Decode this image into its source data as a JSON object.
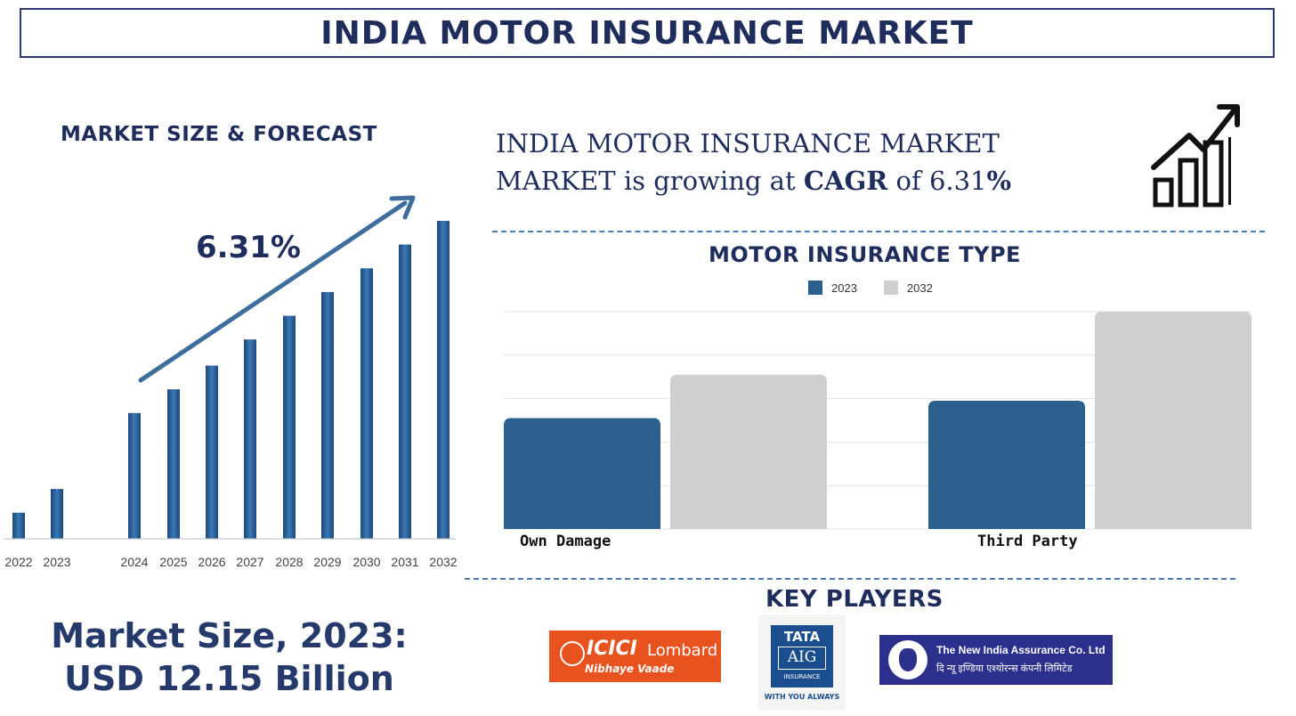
{
  "header": {
    "title": "INDIA MOTOR INSURANCE MARKET"
  },
  "left_panel": {
    "heading": "MARKET SIZE & FORECAST",
    "market_size_line1": "Market Size, 2023:",
    "market_size_line2": "USD 12.15 Billion"
  },
  "cagr_statement": {
    "part1": "INDIA MOTOR INSURANCE MARKET MARKET is growing at ",
    "emphasis": "CAGR",
    "part2": " of 6.31",
    "percent": "%"
  },
  "type_section": {
    "heading": "MOTOR INSURANCE TYPE"
  },
  "key_players": {
    "heading": "KEY PLAYERS",
    "icici": {
      "brand": "ICICI",
      "suffix": "Lombard",
      "tagline": "Nibhaye Vaade"
    },
    "tata": {
      "line1": "TATA",
      "line2": "AIG",
      "line3": "INSURANCE",
      "tagline": "WITH YOU ALWAYS"
    },
    "nia": {
      "line1": "The New India Assurance Co. Ltd",
      "line2": "दि न्यू इण्डिया एश्योरन्स कंपनी लिमिटेड"
    }
  },
  "colors": {
    "primary": "#2b5f8e",
    "secondary": "#cfcfcf",
    "text": "#1f2d5c",
    "accent_line": "#3d6e9e"
  },
  "chart_data": [
    {
      "type": "bar",
      "title": "MARKET SIZE & FORECAST",
      "categories": [
        "2022",
        "2023",
        "2024",
        "2025",
        "2026",
        "2027",
        "2028",
        "2029",
        "2030",
        "2031",
        "2032"
      ],
      "values": [
        5.5,
        10.5,
        26.5,
        31.5,
        36.5,
        42,
        47,
        52,
        57,
        62,
        67
      ],
      "annotation": "6.31%",
      "ylim": [
        0,
        70
      ],
      "xlabel": "",
      "ylabel": ""
    },
    {
      "type": "bar",
      "title": "MOTOR INSURANCE TYPE",
      "categories": [
        "Own Damage",
        "Third Party"
      ],
      "series": [
        {
          "name": "2023",
          "values": [
            25.5,
            29.5
          ]
        },
        {
          "name": "2032",
          "values": [
            35.5,
            50
          ]
        }
      ],
      "ylim": [
        0,
        50
      ],
      "xlabel": "",
      "ylabel": "",
      "legend": "top-center"
    }
  ]
}
